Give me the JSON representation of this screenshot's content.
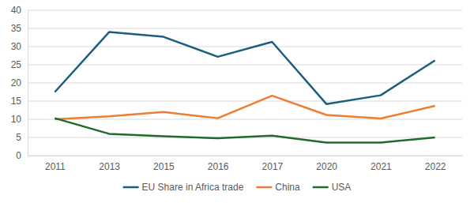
{
  "chart_data": {
    "type": "line",
    "categories": [
      "2011",
      "2013",
      "2015",
      "2016",
      "2017",
      "2020",
      "2021",
      "2022"
    ],
    "series": [
      {
        "name": "EU Share in Africa trade",
        "color": "#1b5e7e",
        "values": [
          17.5,
          34,
          32.7,
          27.2,
          31.3,
          14.2,
          16.6,
          26.2
        ]
      },
      {
        "name": "China",
        "color": "#ed7d31",
        "values": [
          10,
          10.8,
          12,
          10.3,
          16.5,
          11.2,
          10.2,
          13.7
        ]
      },
      {
        "name": "USA",
        "color": "#1f6b2c",
        "values": [
          10.3,
          6,
          5.3,
          4.8,
          5.5,
          3.6,
          3.6,
          5
        ]
      }
    ],
    "ylim": [
      0,
      40
    ],
    "yticks": [
      0,
      5,
      10,
      15,
      20,
      25,
      30,
      35,
      40
    ],
    "grid": true,
    "legend": "bottom"
  }
}
